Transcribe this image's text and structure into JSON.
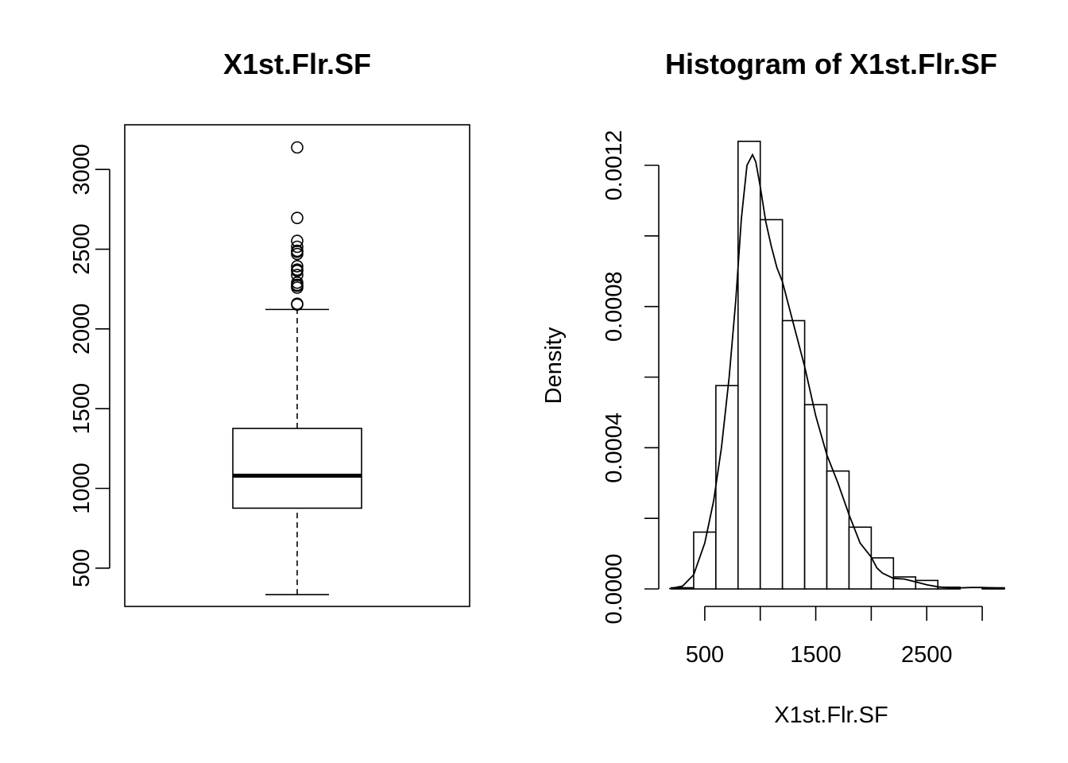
{
  "chart_data": [
    {
      "type": "box",
      "title": "X1st.Flr.SF",
      "xlabel": "",
      "ylabel": "",
      "ylim": [
        260,
        3280
      ],
      "yticks": [
        500,
        1000,
        1500,
        2000,
        2500,
        3000
      ],
      "box": {
        "whisker_low": 334,
        "q1": 876,
        "median": 1080,
        "q3": 1376,
        "whisker_high": 2122
      },
      "outliers": [
        2153,
        2158,
        2259,
        2271,
        2276,
        2290,
        2338,
        2364,
        2372,
        2393,
        2470,
        2484,
        2490,
        2515,
        2552,
        2696,
        3138
      ]
    },
    {
      "type": "histogram",
      "title": "Histogram of X1st.Flr.SF",
      "xlabel": "X1st.Flr.SF",
      "ylabel": "Density",
      "xlim": [
        200,
        3200
      ],
      "ylim": [
        0,
        0.00125
      ],
      "xticks": [
        500,
        1000,
        1500,
        2000,
        2500,
        3000
      ],
      "xtick_labels": [
        "500",
        "1500",
        "2500"
      ],
      "xtick_labeled_values": [
        500,
        1500,
        2500
      ],
      "yticks": [
        0.0,
        0.0002,
        0.0004,
        0.0006,
        0.0008,
        0.001,
        0.0012
      ],
      "ytick_labels": [
        "0.0000",
        "0.0004",
        "0.0008",
        "0.0012"
      ],
      "ytick_labeled_values": [
        0.0,
        0.0004,
        0.0008,
        0.0012
      ],
      "bins": [
        {
          "x0": 200,
          "x1": 400,
          "density": 3.4e-06
        },
        {
          "x0": 400,
          "x1": 600,
          "density": 0.000161
        },
        {
          "x0": 600,
          "x1": 800,
          "density": 0.000576
        },
        {
          "x0": 800,
          "x1": 1000,
          "density": 0.001268
        },
        {
          "x0": 1000,
          "x1": 1200,
          "density": 0.001046
        },
        {
          "x0": 1200,
          "x1": 1400,
          "density": 0.00076
        },
        {
          "x0": 1400,
          "x1": 1600,
          "density": 0.000522
        },
        {
          "x0": 1600,
          "x1": 1800,
          "density": 0.000334
        },
        {
          "x0": 1800,
          "x1": 2000,
          "density": 0.000175
        },
        {
          "x0": 2000,
          "x1": 2200,
          "density": 8.8e-05
        },
        {
          "x0": 2200,
          "x1": 2400,
          "density": 3.4e-05
        },
        {
          "x0": 2400,
          "x1": 2600,
          "density": 2.4e-05
        },
        {
          "x0": 2600,
          "x1": 2800,
          "density": 5e-06
        },
        {
          "x0": 2800,
          "x1": 3000,
          "density": 0.0
        },
        {
          "x0": 3000,
          "x1": 3200,
          "density": 3.4e-06
        }
      ],
      "density_curve": {
        "x": [
          180,
          300,
          400,
          500,
          580,
          650,
          720,
          780,
          830,
          880,
          930,
          960,
          1000,
          1050,
          1100,
          1150,
          1200,
          1300,
          1400,
          1500,
          1600,
          1700,
          1800,
          1900,
          2000,
          2050,
          2100,
          2200,
          2300,
          2400,
          2500,
          2600,
          2700,
          2800,
          2900,
          3000,
          3100,
          3200
        ],
        "y": [
          5e-07,
          8e-06,
          4e-05,
          0.00013,
          0.00025,
          0.0004,
          0.0006,
          0.00082,
          0.00105,
          0.0012,
          0.00123,
          0.00121,
          0.00114,
          0.00104,
          0.00097,
          0.00091,
          0.00087,
          0.00075,
          0.00063,
          0.00049,
          0.00038,
          0.0003,
          0.00021,
          0.00013,
          9e-05,
          6e-05,
          4.5e-05,
          3e-05,
          2.8e-05,
          2e-05,
          1.2e-05,
          6e-06,
          3e-06,
          3e-06,
          4e-06,
          4e-06,
          3e-06,
          1e-06
        ]
      }
    }
  ]
}
